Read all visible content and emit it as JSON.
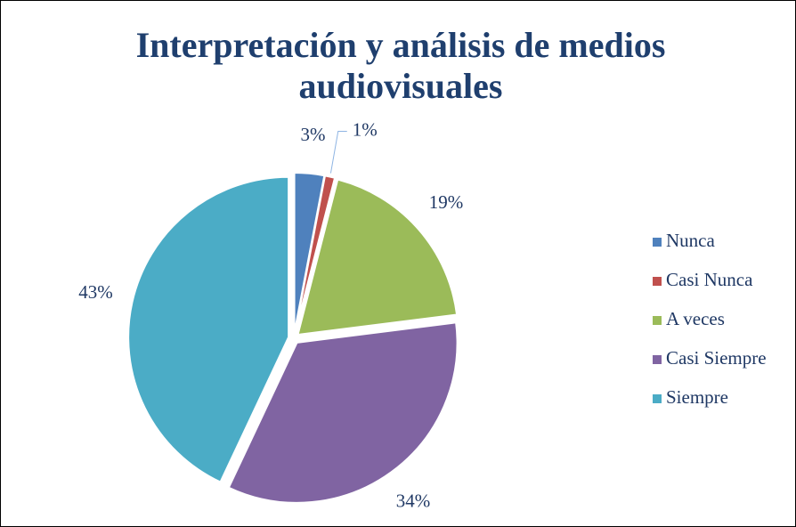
{
  "chart_data": {
    "type": "pie",
    "title": "Interpretación y análisis de medios audiovisuales",
    "categories": [
      "Nunca",
      "Casi Nunca",
      "A veces",
      "Casi Siempre",
      "Siempre"
    ],
    "values": [
      3,
      1,
      19,
      34,
      43
    ],
    "value_labels": [
      "3%",
      "1%",
      "19%",
      "34%",
      "43%"
    ],
    "colors": [
      "#4f81bd",
      "#c0504d",
      "#9bbb59",
      "#8064a2",
      "#4bacc6"
    ],
    "legend": "right"
  }
}
